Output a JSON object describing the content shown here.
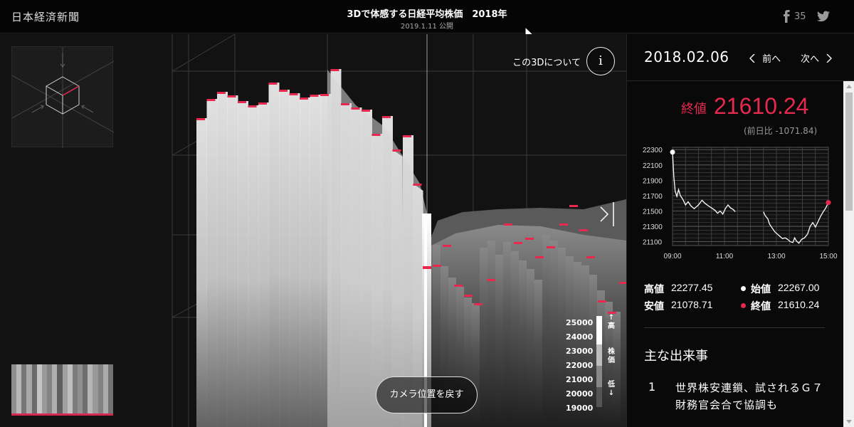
{
  "header": {
    "logo": "日本経済新聞",
    "title": "3Dで体感する日経平均株価　2018年",
    "published": "2019.1.11 公開",
    "facebook_count": "35"
  },
  "view3d": {
    "about_label": "この3Dについて",
    "about_button": "i",
    "camera_reset": "カメラ位置を戻す",
    "scale_labels": [
      "25000",
      "24000",
      "23000",
      "22000",
      "21000",
      "20000",
      "19000"
    ],
    "scale_high": "高",
    "scale_mid": "株価",
    "scale_low": "低",
    "scale_up_arrow": "↑",
    "scale_down_arrow": "↓"
  },
  "panel": {
    "date": "2018.02.06",
    "prev": "前へ",
    "next": "次へ",
    "close_label": "終値",
    "close_value": "21610.24",
    "change": "(前日比 -1071.84)",
    "high_label": "高値",
    "high_value": "22277.45",
    "low_label": "安値",
    "low_value": "21078.71",
    "open_label": "始値",
    "open_value": "22267.00",
    "close2_label": "終値",
    "close2_value": "21610.24",
    "events_title": "主な出来事",
    "event_num": "1",
    "event_text": "世界株安連鎖、試されるＧ７　財務官会合で協調も"
  },
  "chart_data": {
    "type": "line",
    "x_ticks": [
      "09:00",
      "11:00",
      "13:00",
      "15:00"
    ],
    "y_ticks": [
      22300,
      22100,
      21900,
      21700,
      21500,
      21300,
      21100
    ],
    "ylim": [
      21050,
      22330
    ],
    "series": [
      {
        "session": "morning",
        "points": [
          [
            "09:00",
            22267
          ],
          [
            "09:03",
            21950
          ],
          [
            "09:06",
            21760
          ],
          [
            "09:10",
            21690
          ],
          [
            "09:14",
            21780
          ],
          [
            "09:18",
            21700
          ],
          [
            "09:24",
            21650
          ],
          [
            "09:30",
            21580
          ],
          [
            "09:36",
            21620
          ],
          [
            "09:42",
            21570
          ],
          [
            "09:50",
            21530
          ],
          [
            "10:00",
            21580
          ],
          [
            "10:08",
            21640
          ],
          [
            "10:15",
            21600
          ],
          [
            "10:22",
            21570
          ],
          [
            "10:30",
            21540
          ],
          [
            "10:38",
            21510
          ],
          [
            "10:44",
            21470
          ],
          [
            "10:50",
            21500
          ],
          [
            "10:56",
            21460
          ],
          [
            "11:02",
            21530
          ],
          [
            "11:08",
            21580
          ],
          [
            "11:14",
            21540
          ],
          [
            "11:20",
            21520
          ],
          [
            "11:25",
            21490
          ]
        ]
      },
      {
        "session": "afternoon",
        "points": [
          [
            "12:30",
            21490
          ],
          [
            "12:34",
            21440
          ],
          [
            "12:40",
            21400
          ],
          [
            "12:44",
            21330
          ],
          [
            "12:50",
            21280
          ],
          [
            "12:56",
            21230
          ],
          [
            "13:02",
            21200
          ],
          [
            "13:08",
            21170
          ],
          [
            "13:14",
            21140
          ],
          [
            "13:20",
            21150
          ],
          [
            "13:26",
            21130
          ],
          [
            "13:32",
            21100
          ],
          [
            "13:38",
            21090
          ],
          [
            "13:42",
            21150
          ],
          [
            "13:46",
            21110
          ],
          [
            "13:52",
            21080
          ],
          [
            "13:58",
            21130
          ],
          [
            "14:05",
            21150
          ],
          [
            "14:12",
            21200
          ],
          [
            "14:18",
            21300
          ],
          [
            "14:24",
            21350
          ],
          [
            "14:30",
            21290
          ],
          [
            "14:36",
            21360
          ],
          [
            "14:42",
            21430
          ],
          [
            "14:48",
            21490
          ],
          [
            "14:54",
            21540
          ],
          [
            "14:58",
            21590
          ],
          [
            "15:00",
            21610
          ]
        ]
      }
    ]
  },
  "colors": {
    "accent": "#e8294f",
    "background": "#0d0d0d",
    "panel": "#090909"
  },
  "icons": [
    "facebook-icon",
    "twitter-icon",
    "cursor-icon",
    "cube-nav-icon",
    "chevron-left-icon",
    "chevron-right-icon"
  ]
}
